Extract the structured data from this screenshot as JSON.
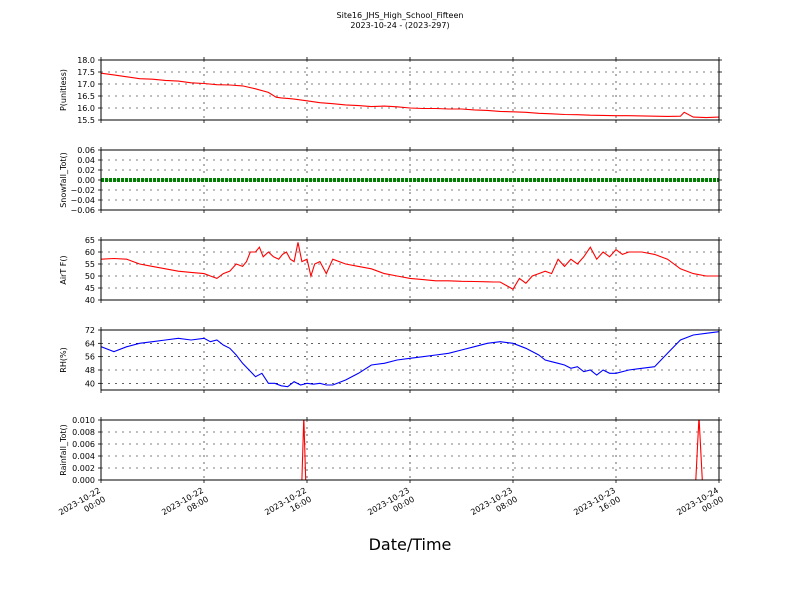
{
  "figure": {
    "title": "Site16_JHS_High_School_Fifteen",
    "subtitle": "2023-10-24 - (2023-297)",
    "xlabel": "Date/Time"
  },
  "chart_data": [
    {
      "type": "line",
      "ylabel": "P(unitless)",
      "ylim": [
        15.5,
        18.0
      ],
      "yticks": [
        "15.5",
        "16.0",
        "16.5",
        "17.0",
        "17.5",
        "18.0"
      ],
      "grid": true,
      "color": "#ff0000",
      "series": [
        {
          "x": [
            0,
            1,
            2,
            3,
            4,
            5,
            6,
            7,
            8,
            9,
            10,
            11,
            12,
            13,
            13.6,
            14,
            14.5,
            15,
            16,
            17,
            18,
            19,
            20,
            21,
            22,
            23,
            24,
            25,
            26,
            27,
            28,
            29,
            30,
            31,
            32,
            33,
            34,
            35,
            36,
            37,
            38,
            39,
            40,
            41,
            42,
            43,
            44,
            45,
            45.3,
            46,
            47,
            48
          ],
          "values": [
            17.45,
            17.38,
            17.3,
            17.22,
            17.2,
            17.15,
            17.12,
            17.05,
            17.02,
            16.97,
            16.96,
            16.92,
            16.8,
            16.65,
            16.45,
            16.42,
            16.4,
            16.37,
            16.3,
            16.22,
            16.18,
            16.13,
            16.1,
            16.06,
            16.08,
            16.05,
            16.0,
            15.98,
            15.98,
            15.96,
            15.96,
            15.92,
            15.9,
            15.86,
            15.84,
            15.82,
            15.78,
            15.76,
            15.73,
            15.72,
            15.7,
            15.69,
            15.68,
            15.68,
            15.67,
            15.66,
            15.65,
            15.66,
            15.82,
            15.62,
            15.6,
            15.62
          ]
        }
      ]
    },
    {
      "type": "line",
      "ylabel": "Snowfall_Tot()",
      "ylim": [
        -0.06,
        0.06
      ],
      "yticks": [
        "−0.06",
        "−0.04",
        "−0.02",
        "0.00",
        "0.02",
        "0.04",
        "0.06"
      ],
      "grid": true,
      "color": "#008000",
      "series": [
        {
          "x": [
            0,
            48
          ],
          "values": [
            0,
            0
          ]
        }
      ]
    },
    {
      "type": "line",
      "ylabel": "AirT F()",
      "ylim": [
        40,
        65
      ],
      "yticks": [
        "40",
        "45",
        "50",
        "55",
        "60",
        "65"
      ],
      "grid": true,
      "color": "#ff0000",
      "series": [
        {
          "x": [
            0,
            1,
            2,
            3,
            4,
            5,
            6,
            7,
            8,
            8.5,
            9,
            9.5,
            10,
            10.5,
            11,
            11.3,
            11.6,
            12,
            12.3,
            12.6,
            13,
            13.4,
            13.8,
            14.1,
            14.4,
            14.7,
            15.0,
            15.3,
            15.6,
            16,
            16.3,
            16.6,
            17,
            17.5,
            18,
            19,
            20,
            21,
            22,
            23,
            24,
            25,
            26,
            27,
            28,
            29,
            30,
            30.5,
            31,
            31.5,
            32,
            32.5,
            33,
            33.5,
            34,
            34.5,
            35,
            35.5,
            36,
            36.5,
            37,
            37.5,
            38,
            38.5,
            39,
            39.5,
            40,
            40.5,
            41,
            42,
            43,
            44,
            45,
            46,
            47,
            48
          ],
          "values": [
            57,
            57.3,
            57,
            55,
            54,
            53,
            52,
            51.5,
            51,
            50,
            49,
            51,
            52,
            55,
            54,
            56,
            60,
            60,
            62,
            58,
            60,
            58,
            57,
            59,
            60,
            57,
            56,
            64,
            56,
            57,
            50,
            55,
            56,
            51,
            57,
            55,
            54,
            53,
            51,
            50,
            49,
            48.5,
            48,
            48,
            47.8,
            47.7,
            47.6,
            47.5,
            47.5,
            46,
            44.5,
            49,
            47,
            50,
            51,
            52,
            51,
            57,
            54,
            57,
            55,
            58,
            62,
            57,
            60,
            58,
            61,
            59,
            60,
            60,
            59,
            57,
            53,
            51,
            50,
            50
          ]
        }
      ]
    },
    {
      "type": "line",
      "ylabel": "RH(%)",
      "ylim": [
        36,
        72
      ],
      "yticks": [
        "40",
        "48",
        "56",
        "64",
        "72"
      ],
      "grid": true,
      "color": "#0000ff",
      "series": [
        {
          "x": [
            0,
            1,
            2,
            3,
            4,
            5,
            6,
            7,
            8,
            8.5,
            9,
            9.5,
            10,
            10.5,
            11,
            11.5,
            12,
            12.5,
            13,
            13.5,
            14,
            14.5,
            15,
            15.5,
            16,
            16.5,
            17,
            17.5,
            18,
            19,
            20,
            21,
            22,
            23,
            24,
            25,
            26,
            27,
            28,
            29,
            30,
            31,
            32,
            33,
            34,
            34.5,
            35,
            35.5,
            36,
            36.5,
            37,
            37.5,
            38,
            38.5,
            39,
            39.5,
            40,
            41,
            42,
            43,
            44,
            45,
            46,
            47,
            48
          ],
          "values": [
            62,
            59,
            62,
            64,
            65,
            66,
            67,
            66,
            67,
            65,
            66,
            63,
            61,
            57,
            52,
            48,
            44,
            46,
            40,
            40,
            38.5,
            38,
            41,
            39,
            40,
            39.5,
            40,
            39,
            39,
            42,
            46,
            51,
            52,
            54,
            55,
            56,
            57,
            58,
            60,
            62,
            64,
            65,
            64,
            61,
            57,
            54,
            53,
            52,
            51,
            49,
            50,
            47,
            48,
            45,
            48,
            46,
            46,
            48,
            49,
            50,
            58,
            66,
            69,
            70,
            71
          ]
        }
      ]
    },
    {
      "type": "line",
      "ylabel": "Rainfall_Tot()",
      "ylim": [
        0,
        0.01
      ],
      "yticks": [
        "0.000",
        "0.002",
        "0.004",
        "0.006",
        "0.008",
        "0.010"
      ],
      "grid": true,
      "color": "#ff0000",
      "series": [
        {
          "x": [
            0,
            15.6,
            15.75,
            15.9,
            46.2,
            46.45,
            46.7,
            48
          ],
          "values": [
            0,
            0,
            0.0105,
            0,
            0,
            0.0105,
            0,
            0
          ]
        }
      ]
    }
  ],
  "x_axis": {
    "ticks": [
      {
        "hours": 0,
        "line1": "2023-10-22",
        "line2": "00:00"
      },
      {
        "hours": 8,
        "line1": "2023-10-22",
        "line2": "08:00"
      },
      {
        "hours": 16,
        "line1": "2023-10-22",
        "line2": "16:00"
      },
      {
        "hours": 24,
        "line1": "2023-10-23",
        "line2": "00:00"
      },
      {
        "hours": 32,
        "line1": "2023-10-23",
        "line2": "08:00"
      },
      {
        "hours": 40,
        "line1": "2023-10-23",
        "line2": "16:00"
      },
      {
        "hours": 48,
        "line1": "2023-10-24",
        "line2": "00:00"
      }
    ]
  }
}
